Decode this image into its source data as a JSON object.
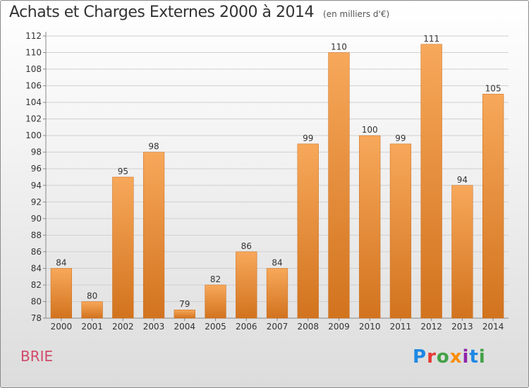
{
  "header": {
    "title": "Achats et Charges Externes 2000 à 2014",
    "unit": "(en milliers d'€)"
  },
  "location": "BRIE",
  "logo": {
    "text": "Proxiti",
    "letters": [
      "P",
      "r",
      "o",
      "x",
      "i",
      "t",
      "i"
    ],
    "colors": [
      "#1e88e5",
      "#e53935",
      "#43a047",
      "#fb8c00",
      "#8e24aa",
      "#1e88e5",
      "#43a047"
    ]
  },
  "colors": {
    "bar_light": "#f7a85a",
    "bar_dark": "#d2731e",
    "grid": "#d0d0d0",
    "axis_text": "#333333",
    "location_text": "#d04a6a"
  },
  "chart_data": {
    "type": "bar",
    "categories": [
      "2000",
      "2001",
      "2002",
      "2003",
      "2004",
      "2005",
      "2006",
      "2007",
      "2008",
      "2009",
      "2010",
      "2011",
      "2012",
      "2013",
      "2014"
    ],
    "values": [
      84,
      80,
      95,
      98,
      79,
      82,
      86,
      84,
      99,
      110,
      100,
      99,
      111,
      94,
      105
    ],
    "title": "Achats et Charges Externes 2000 à 2014",
    "subtitle": "(en milliers d'€)",
    "xlabel": "",
    "ylabel": "",
    "ylim": [
      78,
      112
    ],
    "yticks": [
      78,
      80,
      82,
      84,
      86,
      88,
      90,
      92,
      94,
      96,
      98,
      100,
      102,
      104,
      106,
      108,
      110,
      112
    ],
    "grid": true,
    "legend": "none"
  }
}
